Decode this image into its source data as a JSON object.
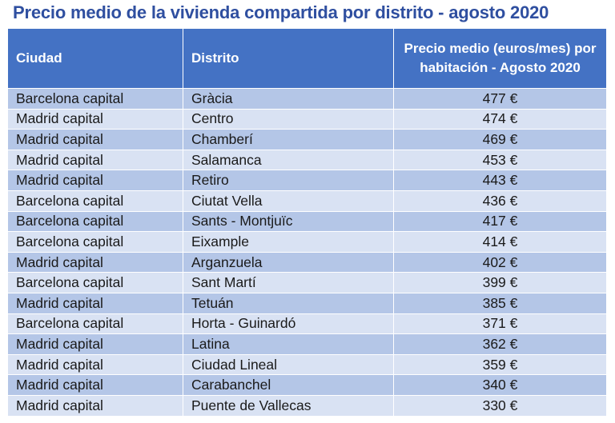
{
  "title": "Precio medio de la vivienda compartida por distrito - agosto 2020",
  "table": {
    "headers": [
      "Ciudad",
      "Distrito",
      "Precio medio (euros/mes) por habitación - Agosto 2020"
    ],
    "rows": [
      [
        "Barcelona capital",
        "Gràcia",
        "477 €"
      ],
      [
        "Madrid capital",
        "Centro",
        "474 €"
      ],
      [
        "Madrid capital",
        "Chamberí",
        "469 €"
      ],
      [
        "Madrid capital",
        "Salamanca",
        "453 €"
      ],
      [
        "Madrid capital",
        "Retiro",
        "443 €"
      ],
      [
        "Barcelona capital",
        "Ciutat Vella",
        "436 €"
      ],
      [
        "Barcelona capital",
        "Sants - Montjuïc",
        "417 €"
      ],
      [
        "Barcelona capital",
        "Eixample",
        "414 €"
      ],
      [
        "Madrid capital",
        "Arganzuela",
        "402 €"
      ],
      [
        "Barcelona capital",
        "Sant Martí",
        "399 €"
      ],
      [
        "Madrid capital",
        "Tetuán",
        "385 €"
      ],
      [
        "Barcelona capital",
        "Horta - Guinardó",
        "371 €"
      ],
      [
        "Madrid capital",
        "Latina",
        "362 €"
      ],
      [
        "Madrid capital",
        "Ciudad Lineal",
        "359 €"
      ],
      [
        "Madrid capital",
        "Carabanchel",
        "340 €"
      ],
      [
        "Madrid capital",
        "Puente de Vallecas",
        "330 €"
      ]
    ]
  },
  "colors": {
    "title": "#2f4fa0",
    "header_bg": "#4472c4",
    "row_dark": "#b4c6e7",
    "row_light": "#d9e2f3"
  }
}
